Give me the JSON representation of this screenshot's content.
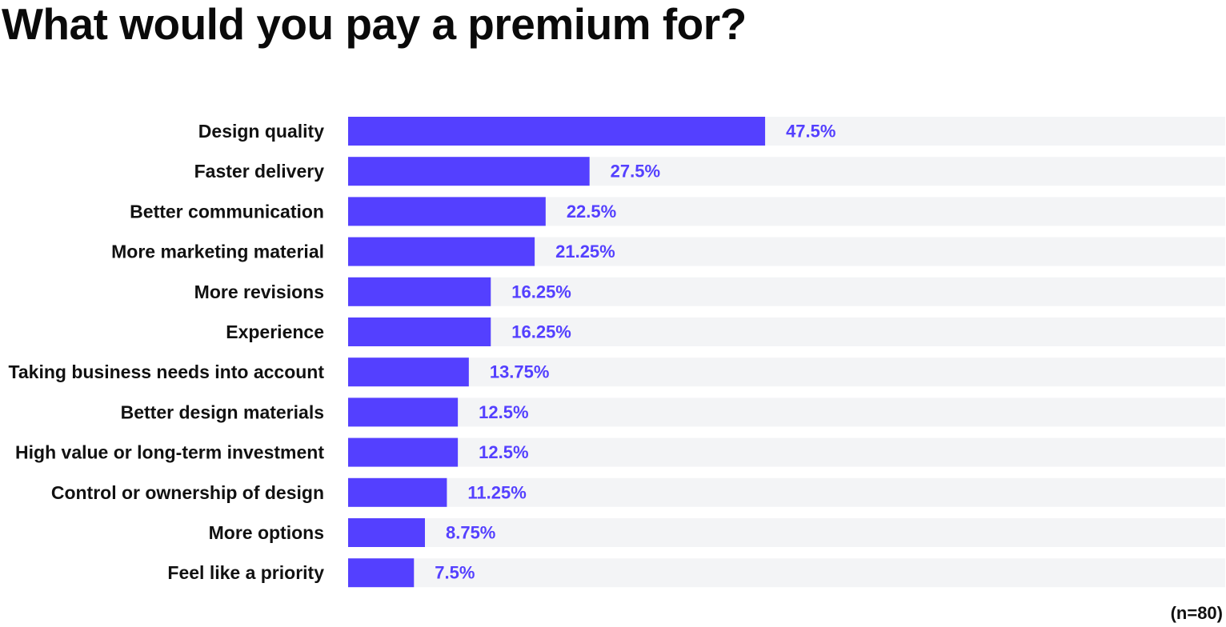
{
  "colors": {
    "bar": "#5440ff",
    "track": "#f3f4f6",
    "value_label": "#5440ff",
    "text": "#111111"
  },
  "chart_data": {
    "type": "bar",
    "orientation": "horizontal",
    "title": "What would you pay a premium for?",
    "note": "(n=80)",
    "categories": [
      "Design quality",
      "Faster delivery",
      "Better communication",
      "More marketing material",
      "More revisions",
      "Experience",
      "Taking business needs into account",
      "Better design materials",
      "High value or long-term investment",
      "Control or ownership of design",
      "More options",
      "Feel like a priority"
    ],
    "values": [
      47.5,
      27.5,
      22.5,
      21.25,
      16.25,
      16.25,
      13.75,
      12.5,
      12.5,
      11.25,
      8.75,
      7.5
    ],
    "value_labels": [
      "47.5%",
      "27.5%",
      "22.5%",
      "21.25%",
      "16.25%",
      "16.25%",
      "13.75%",
      "12.5%",
      "12.5%",
      "11.25%",
      "8.75%",
      "7.5%"
    ],
    "unit": "%",
    "xlim": [
      0,
      100
    ],
    "grid": false,
    "legend": "none"
  }
}
